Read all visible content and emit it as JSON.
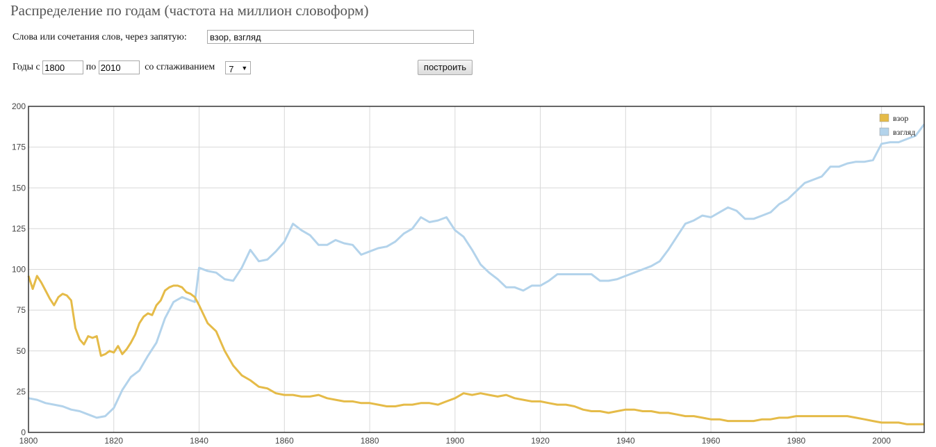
{
  "header": {
    "title": "Распределение по годам (частота на миллион словоформ)"
  },
  "form": {
    "words_label": "Слова или сочетания слов, через запятую:",
    "words_value": "взор, взгляд",
    "years_label_from": "Годы с",
    "year_from": "1800",
    "years_label_to": "по",
    "year_to": "2010",
    "smoothing_label": "со сглаживанием",
    "smoothing_value": "7",
    "submit_label": "построить"
  },
  "chart_data": {
    "type": "line",
    "title": "",
    "xlabel": "",
    "ylabel": "",
    "xlim": [
      1800,
      2010
    ],
    "ylim": [
      0,
      200
    ],
    "x_ticks": [
      "1800",
      "1820",
      "1840",
      "1860",
      "1880",
      "1900",
      "1920",
      "1940",
      "1960",
      "1980",
      "2000"
    ],
    "y_ticks": [
      "0",
      "25",
      "50",
      "75",
      "100",
      "125",
      "150",
      "175",
      "200"
    ],
    "grid": true,
    "legend_position": "top-right",
    "series": [
      {
        "name": "взор",
        "color": "#e5bb48",
        "x": [
          1800,
          1801,
          1802,
          1803,
          1804,
          1805,
          1806,
          1807,
          1808,
          1809,
          1810,
          1811,
          1812,
          1813,
          1814,
          1815,
          1816,
          1817,
          1818,
          1819,
          1820,
          1821,
          1822,
          1823,
          1824,
          1825,
          1826,
          1827,
          1828,
          1829,
          1830,
          1831,
          1832,
          1833,
          1834,
          1835,
          1836,
          1837,
          1838,
          1839,
          1840,
          1842,
          1844,
          1846,
          1848,
          1850,
          1852,
          1854,
          1856,
          1858,
          1860,
          1862,
          1864,
          1866,
          1868,
          1870,
          1872,
          1874,
          1876,
          1878,
          1880,
          1882,
          1884,
          1886,
          1888,
          1890,
          1892,
          1894,
          1896,
          1898,
          1900,
          1902,
          1904,
          1906,
          1908,
          1910,
          1912,
          1914,
          1916,
          1918,
          1920,
          1922,
          1924,
          1926,
          1928,
          1930,
          1932,
          1934,
          1936,
          1938,
          1940,
          1942,
          1944,
          1946,
          1948,
          1950,
          1952,
          1954,
          1956,
          1958,
          1960,
          1962,
          1964,
          1966,
          1968,
          1970,
          1972,
          1974,
          1976,
          1978,
          1980,
          1982,
          1984,
          1986,
          1988,
          1990,
          1992,
          1994,
          1996,
          1998,
          2000,
          2002,
          2004,
          2006,
          2008,
          2010
        ],
        "values": [
          96,
          88,
          96,
          92,
          87,
          82,
          78,
          83,
          85,
          84,
          81,
          64,
          57,
          54,
          59,
          58,
          59,
          47,
          48,
          50,
          49,
          53,
          48,
          51,
          55,
          60,
          67,
          71,
          73,
          72,
          78,
          81,
          87,
          89,
          90,
          90,
          89,
          86,
          85,
          83,
          78,
          67,
          62,
          50,
          41,
          35,
          32,
          28,
          27,
          24,
          23,
          23,
          22,
          22,
          23,
          21,
          20,
          19,
          19,
          18,
          18,
          17,
          16,
          16,
          17,
          17,
          18,
          18,
          17,
          19,
          21,
          24,
          23,
          24,
          23,
          22,
          23,
          21,
          20,
          19,
          19,
          18,
          17,
          17,
          16,
          14,
          13,
          13,
          12,
          13,
          14,
          14,
          13,
          13,
          12,
          12,
          11,
          10,
          10,
          9,
          8,
          8,
          7,
          7,
          7,
          7,
          8,
          8,
          9,
          9,
          10,
          10,
          10,
          10,
          10,
          10,
          10,
          9,
          8,
          7,
          6,
          6,
          6,
          5,
          5,
          5
        ]
      },
      {
        "name": "взгляд",
        "color": "#b3d3eb",
        "x": [
          1800,
          1802,
          1804,
          1806,
          1808,
          1810,
          1812,
          1814,
          1816,
          1818,
          1820,
          1822,
          1824,
          1826,
          1828,
          1830,
          1832,
          1834,
          1836,
          1838,
          1839,
          1840,
          1842,
          1844,
          1846,
          1848,
          1850,
          1852,
          1854,
          1856,
          1858,
          1860,
          1862,
          1864,
          1866,
          1868,
          1870,
          1872,
          1874,
          1876,
          1878,
          1880,
          1882,
          1884,
          1886,
          1888,
          1890,
          1892,
          1894,
          1896,
          1898,
          1900,
          1902,
          1904,
          1906,
          1908,
          1910,
          1912,
          1914,
          1916,
          1918,
          1920,
          1922,
          1924,
          1926,
          1928,
          1930,
          1932,
          1934,
          1936,
          1938,
          1940,
          1942,
          1944,
          1946,
          1948,
          1950,
          1952,
          1954,
          1956,
          1958,
          1960,
          1962,
          1964,
          1966,
          1968,
          1970,
          1972,
          1974,
          1976,
          1978,
          1980,
          1982,
          1984,
          1986,
          1988,
          1990,
          1992,
          1994,
          1996,
          1998,
          2000,
          2002,
          2004,
          2006,
          2008,
          2010
        ],
        "values": [
          21,
          20,
          18,
          17,
          16,
          14,
          13,
          11,
          9,
          10,
          15,
          26,
          34,
          38,
          47,
          55,
          70,
          80,
          83,
          81,
          80,
          101,
          99,
          98,
          94,
          93,
          101,
          112,
          105,
          106,
          111,
          117,
          128,
          124,
          121,
          115,
          115,
          118,
          116,
          115,
          109,
          111,
          113,
          114,
          117,
          122,
          125,
          132,
          129,
          130,
          132,
          124,
          120,
          112,
          103,
          98,
          94,
          89,
          89,
          87,
          90,
          90,
          93,
          97,
          97,
          97,
          97,
          97,
          93,
          93,
          94,
          96,
          98,
          100,
          102,
          105,
          112,
          120,
          128,
          130,
          133,
          132,
          135,
          138,
          136,
          131,
          131,
          133,
          135,
          140,
          143,
          148,
          153,
          155,
          157,
          163,
          163,
          165,
          166,
          166,
          167,
          177,
          178,
          178,
          180,
          182,
          189
        ]
      }
    ]
  }
}
